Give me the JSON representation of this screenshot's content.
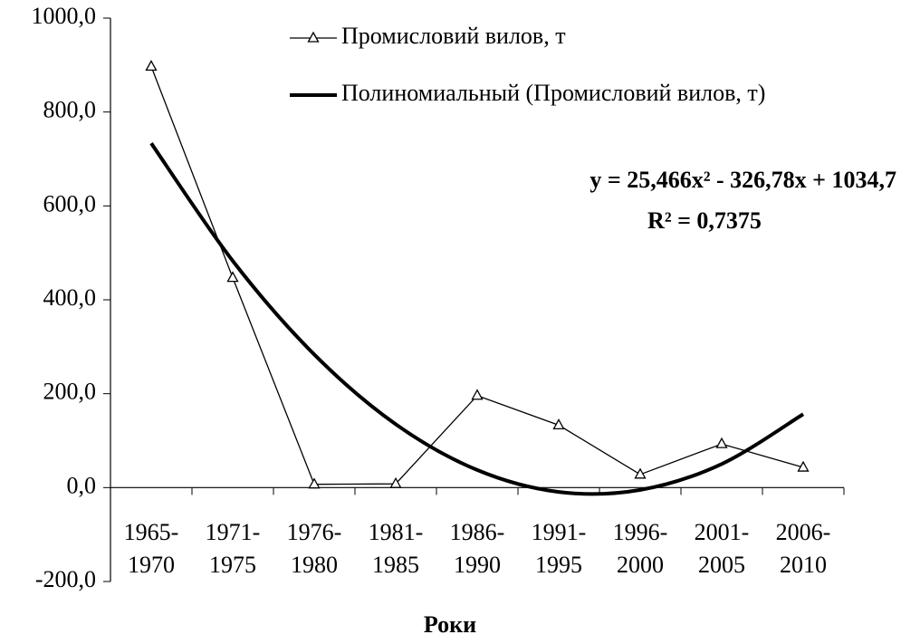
{
  "chart_data": {
    "type": "line",
    "xlabel": "Роки",
    "categories": [
      "1965-1970",
      "1971-1975",
      "1976-1980",
      "1981-1985",
      "1986-1990",
      "1991-1995",
      "1996-2000",
      "2001-2005",
      "2006-2010"
    ],
    "series": [
      {
        "name": "Промисловий вилов, т",
        "color": "#000000",
        "marker": "triangle",
        "values": [
          897,
          447,
          7,
          8,
          196,
          133,
          28,
          93,
          43
        ]
      },
      {
        "name": "Полиномиальный (Промисловий вилов, т)",
        "color": "#000000",
        "trendline": true,
        "values": [
          733.4,
          483.0,
          283.6,
          135.0,
          37.5,
          -9.2,
          -4.9,
          50.3,
          156.4
        ]
      }
    ],
    "annotations": [
      "y = 25,466x² - 326,78x + 1034,7",
      "R² = 0,7375"
    ],
    "ylim": [
      -200,
      1000
    ],
    "yticks": [
      {
        "value": -200,
        "label": "-200,0"
      },
      {
        "value": 0,
        "label": "0,0"
      },
      {
        "value": 200,
        "label": "200,0"
      },
      {
        "value": 400,
        "label": "400,0"
      },
      {
        "value": 600,
        "label": "600,0"
      },
      {
        "value": 800,
        "label": "800,0"
      },
      {
        "value": 1000,
        "label": "1000,0"
      }
    ],
    "grid": false
  }
}
